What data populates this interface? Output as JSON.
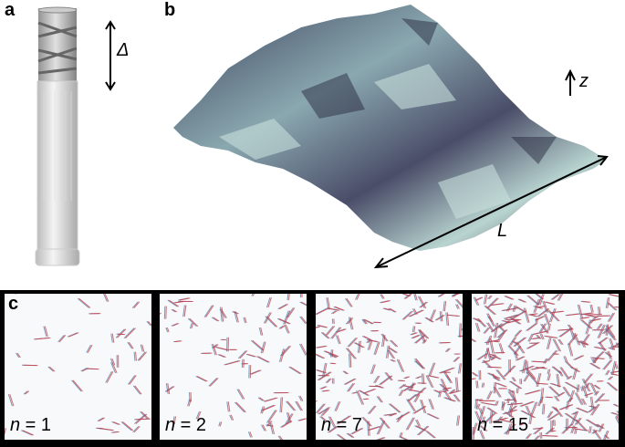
{
  "panel_labels": {
    "a": "a",
    "b": "b",
    "c": "c"
  },
  "panel_a": {
    "delta_label": "Δ"
  },
  "panel_b": {
    "z_label": "z",
    "L_label": "L"
  },
  "panel_c": {
    "panels": [
      {
        "n_label": "n",
        "eq": " = 1",
        "density": 1
      },
      {
        "n_label": "n",
        "eq": " = 2",
        "density": 2
      },
      {
        "n_label": "n",
        "eq": " = 7",
        "density": 4
      },
      {
        "n_label": "n",
        "eq": " = 15",
        "density": 7
      }
    ],
    "colors": {
      "red": "#e0303a",
      "blue": "#3a7fa8"
    }
  }
}
